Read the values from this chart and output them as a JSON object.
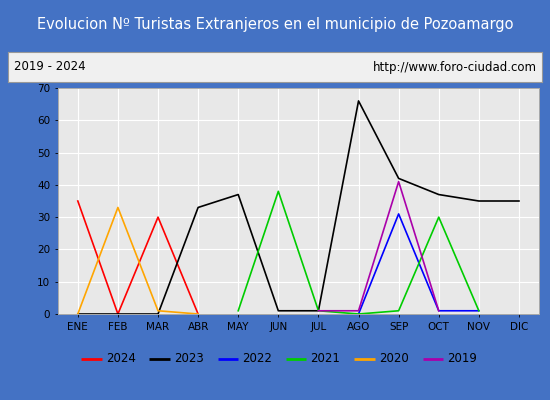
{
  "title": "Evolucion Nº Turistas Extranjeros en el municipio de Pozoamargo",
  "subtitle_left": "2019 - 2024",
  "subtitle_right": "http://www.foro-ciudad.com",
  "months": [
    "ENE",
    "FEB",
    "MAR",
    "ABR",
    "MAY",
    "JUN",
    "JUL",
    "AGO",
    "SEP",
    "OCT",
    "NOV",
    "DIC"
  ],
  "series_order": [
    "2024",
    "2023",
    "2022",
    "2021",
    "2020",
    "2019"
  ],
  "series": {
    "2024": {
      "color": "#ff0000",
      "data": [
        35,
        0,
        30,
        0,
        null,
        null,
        null,
        null,
        null,
        null,
        null,
        null
      ]
    },
    "2023": {
      "color": "#000000",
      "data": [
        0,
        0,
        0,
        33,
        37,
        1,
        1,
        66,
        42,
        37,
        35,
        35
      ]
    },
    "2022": {
      "color": "#0000ff",
      "data": [
        null,
        null,
        null,
        null,
        null,
        null,
        null,
        0,
        31,
        1,
        1,
        null
      ]
    },
    "2021": {
      "color": "#00cc00",
      "data": [
        null,
        null,
        null,
        null,
        1,
        38,
        1,
        0,
        1,
        30,
        1,
        null
      ]
    },
    "2020": {
      "color": "#ffa500",
      "data": [
        0,
        33,
        1,
        0,
        null,
        null,
        null,
        null,
        null,
        null,
        null,
        null
      ]
    },
    "2019": {
      "color": "#aa00aa",
      "data": [
        null,
        null,
        null,
        null,
        null,
        null,
        1,
        1,
        41,
        1,
        null,
        null
      ]
    }
  },
  "ylim": [
    0,
    70
  ],
  "yticks": [
    0,
    10,
    20,
    30,
    40,
    50,
    60,
    70
  ],
  "bg_title": "#4472c4",
  "bg_plot": "#e8e8e8",
  "grid_color": "#ffffff",
  "title_color": "#ffffff",
  "title_fontsize": 10.5,
  "subtitle_fontsize": 8.5,
  "tick_fontsize": 7.5,
  "legend_fontsize": 8.5,
  "outer_bg": "#4472c4"
}
